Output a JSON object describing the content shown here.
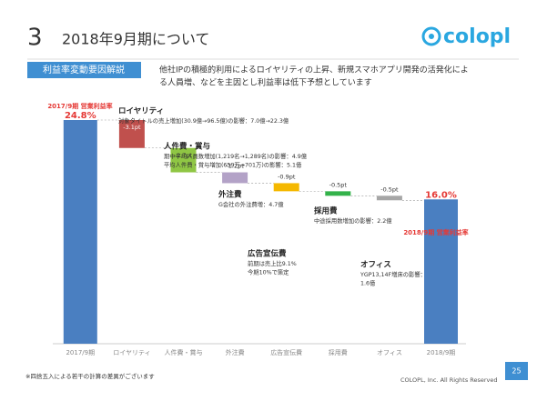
{
  "header": {
    "number": "3",
    "title": "2018年9月期について"
  },
  "logo": "colopl",
  "section_label": "利益率変動要因解説",
  "summary": [
    "他社IPの積極的利用によるロイヤリティの上昇、新規スマホアプリ開発の活発化によ",
    "る人員増、などを主因とし利益率は低下予想としています"
  ],
  "chart_data": {
    "type": "waterfall",
    "categories": [
      "2017/9期",
      "ロイヤリティ",
      "人件費・賞与",
      "外注費",
      "広告宣伝費",
      "採用費",
      "オフィス",
      "2018/9期"
    ],
    "values": [
      24.8,
      -3.1,
      -2.7,
      -1.2,
      -0.9,
      -0.5,
      -0.5,
      16.0
    ],
    "value_labels": [
      "24.8%",
      "-3.1pt",
      "-2.7pt",
      "-1.2pt",
      "-0.9pt",
      "-0.5pt",
      "-0.5pt",
      "16.0%"
    ],
    "totals": [
      0,
      7
    ],
    "colors": [
      "#4a7fc1",
      "#c0504d",
      "#8fc644",
      "#b3a2c7",
      "#f5b800",
      "#33b24a",
      "#a6a6a6",
      "#4a7fc1"
    ],
    "annotations": [
      {
        "title": "2017/9期 営業利益率",
        "lines": []
      },
      {
        "title": "ロイヤリティ",
        "lines": [
          "対象タイトルの売上増加(30.9億→96.5億)の影響：7.0億→22.3億"
        ]
      },
      {
        "title": "人件費・賞与",
        "lines": [
          "期中平均人員数増加(1,219名→1,289名)の影響：4.9億",
          "平均人件費・賞与増加(659万→701万)の影響：5.1億"
        ]
      },
      {
        "title": "外注費",
        "lines": [
          "G会社の外注費増：4.7億"
        ]
      },
      {
        "title": "広告宣伝費",
        "lines": [
          "前期は売上比9.1%",
          "今期10%で策定"
        ]
      },
      {
        "title": "採用費",
        "lines": [
          "中途採用数増加の影響：2.2億"
        ]
      },
      {
        "title": "オフィス",
        "lines": [
          "YGP13,14F増床の影響：",
          "1.6億"
        ]
      },
      {
        "title": "2018/9期 営業利益率",
        "lines": []
      }
    ]
  },
  "footnote": "※四捨五入による若干の計算の差異がございます",
  "copyright": "COLOPL, Inc. All Rights Reserved",
  "page_number": "25"
}
